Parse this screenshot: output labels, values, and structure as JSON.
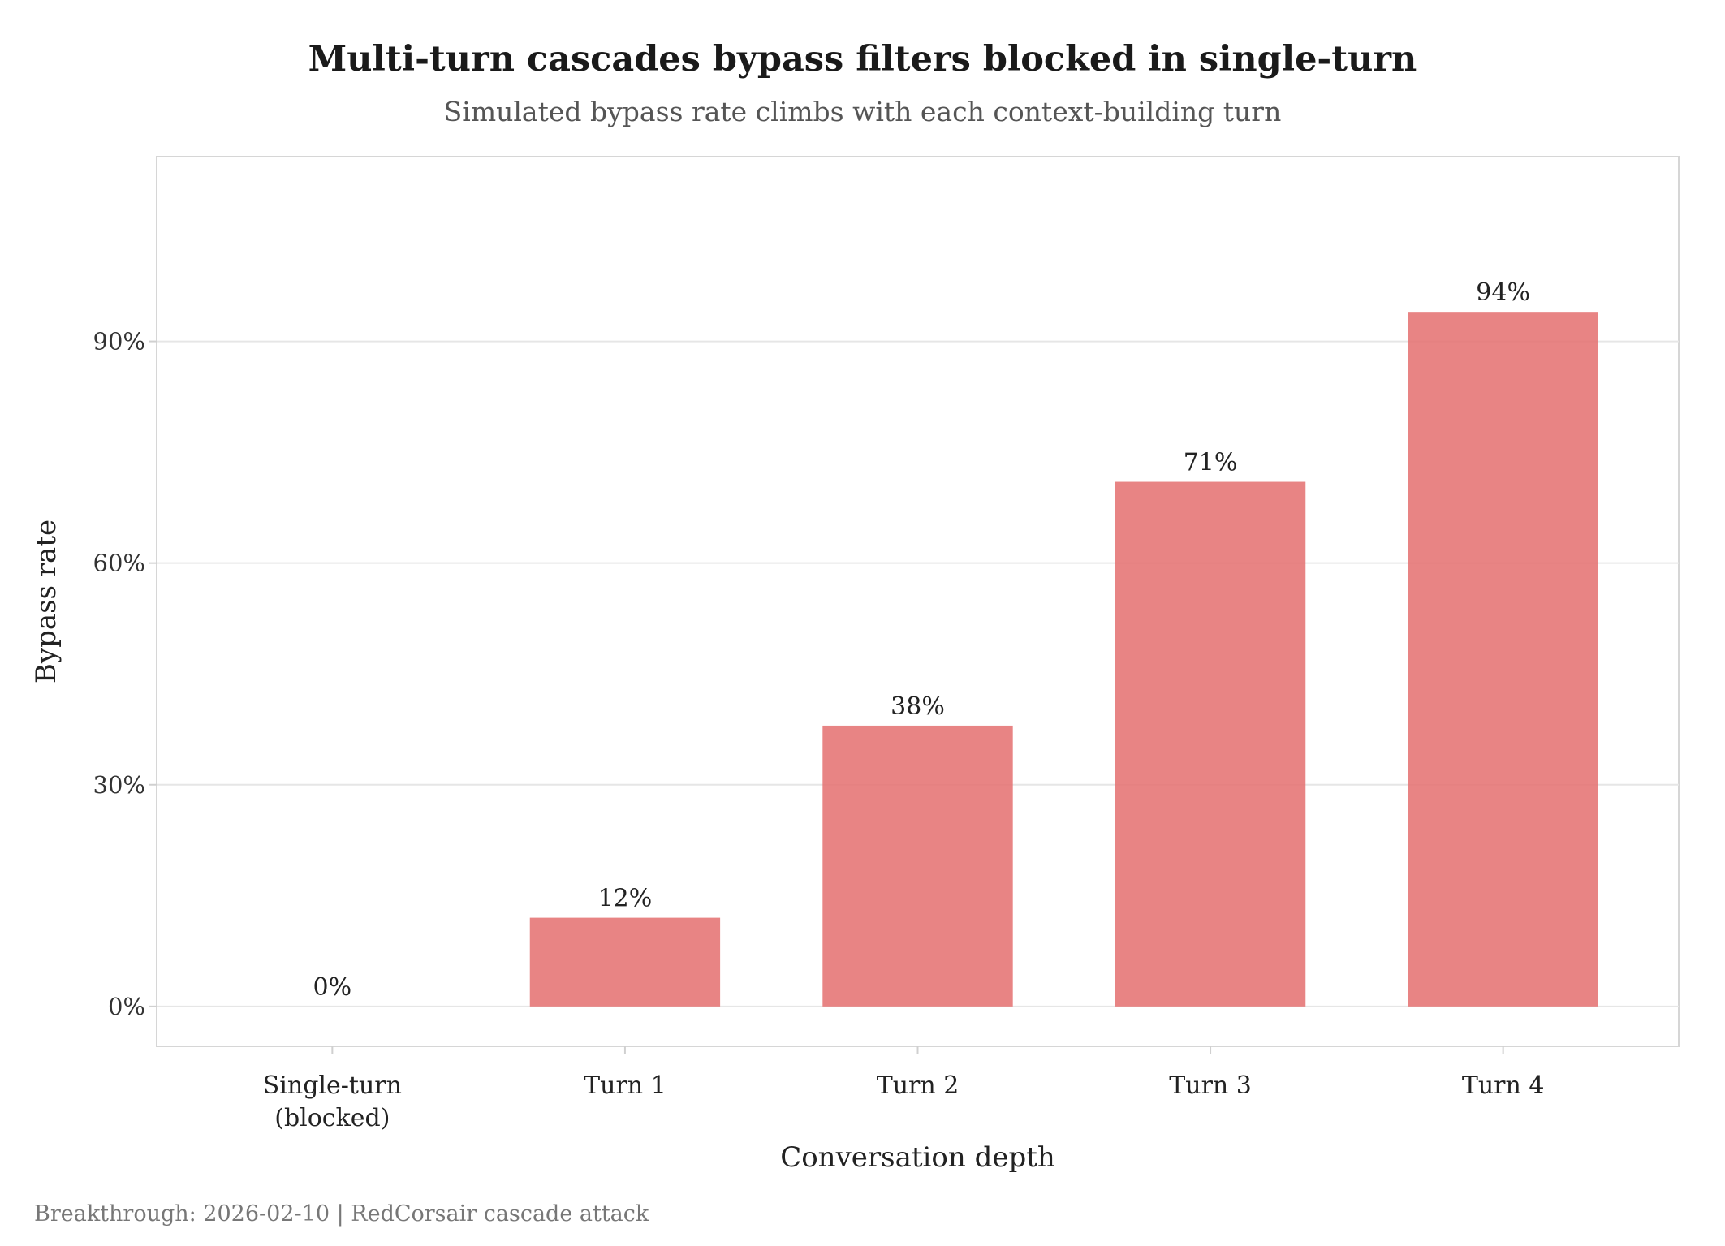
{
  "chart_data": {
    "type": "bar",
    "title": "Multi-turn cascades bypass filters blocked in single-turn",
    "subtitle": "Simulated bypass rate climbs with each context-building turn",
    "xlabel": "Conversation depth",
    "ylabel": "Bypass rate",
    "categories": [
      "Single-turn\n(blocked)",
      "Turn 1",
      "Turn 2",
      "Turn 3",
      "Turn 4"
    ],
    "values": [
      0,
      12,
      38,
      71,
      94
    ],
    "data_labels": [
      "0%",
      "12%",
      "38%",
      "71%",
      "94%"
    ],
    "yticks": [
      0,
      30,
      60,
      90
    ],
    "ytick_labels": [
      "0%",
      "30%",
      "60%",
      "90%"
    ],
    "ylim": [
      -5.4,
      115
    ],
    "grid": true,
    "bar_color": "#E57373"
  },
  "caption": "Breakthrough: 2026-02-10 | RedCorsair cascade attack"
}
